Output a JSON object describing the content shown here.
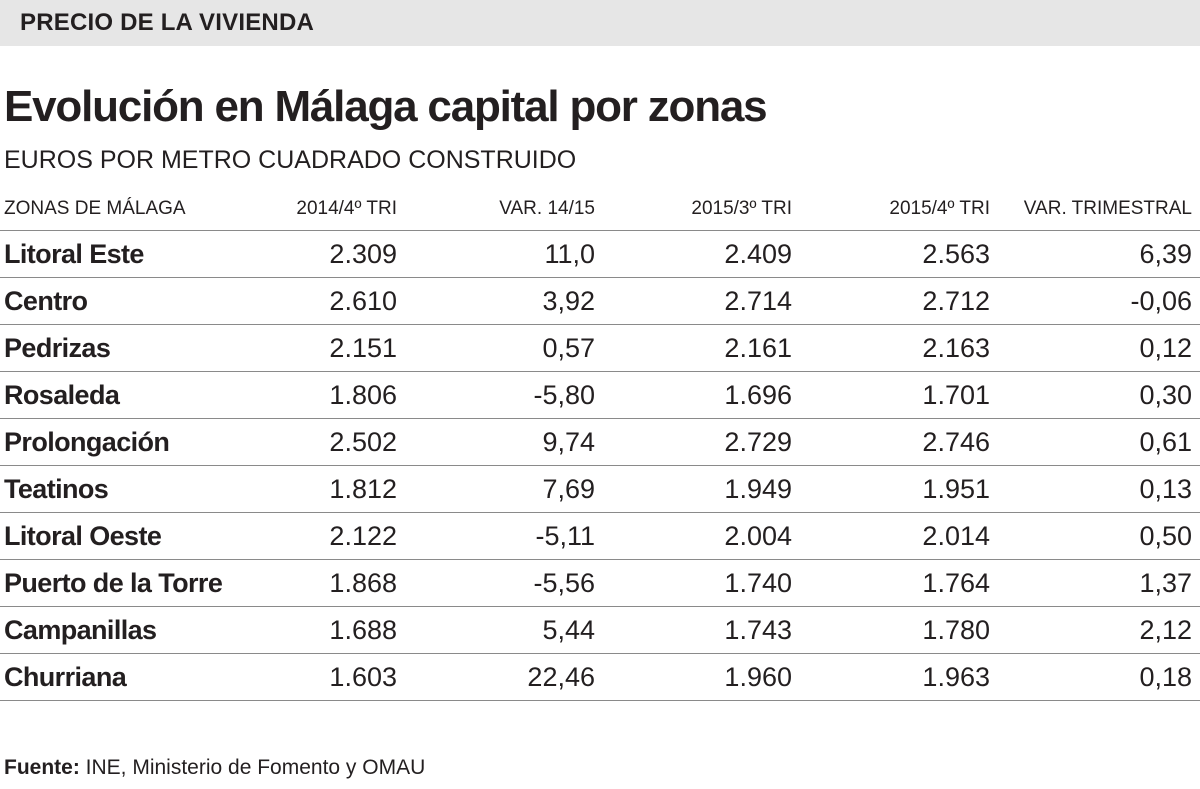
{
  "section": "PRECIO DE LA VIVIENDA",
  "title": "Evolución en Málaga capital por zonas",
  "subtitle": "EUROS POR METRO CUADRADO CONSTRUIDO",
  "source_label": "Fuente:",
  "source_text": "INE, Ministerio de Fomento y OMAU",
  "chart_data": {
    "type": "table",
    "title": "Evolución en Málaga capital por zonas",
    "subtitle": "EUROS POR METRO CUADRADO CONSTRUIDO",
    "columns": [
      "ZONAS DE MÁLAGA",
      "2014/4º TRI",
      "VAR. 14/15",
      "2015/3º TRI",
      "2015/4º TRI",
      "VAR. TRIMESTRAL"
    ],
    "rows": [
      [
        "Litoral Este",
        "2.309",
        "11,0",
        "2.409",
        "2.563",
        "6,39"
      ],
      [
        "Centro",
        "2.610",
        "3,92",
        "2.714",
        "2.712",
        "-0,06"
      ],
      [
        "Pedrizas",
        "2.151",
        "0,57",
        "2.161",
        "2.163",
        "0,12"
      ],
      [
        "Rosaleda",
        "1.806",
        "-5,80",
        "1.696",
        "1.701",
        "0,30"
      ],
      [
        "Prolongación",
        "2.502",
        "9,74",
        "2.729",
        "2.746",
        "0,61"
      ],
      [
        "Teatinos",
        "1.812",
        "7,69",
        "1.949",
        "1.951",
        "0,13"
      ],
      [
        "Litoral Oeste",
        "2.122",
        "-5,11",
        "2.004",
        "2.014",
        "0,50"
      ],
      [
        "Puerto de la Torre",
        "1.868",
        "-5,56",
        "1.740",
        "1.764",
        "1,37"
      ],
      [
        "Campanillas",
        "1.688",
        "5,44",
        "1.743",
        "1.780",
        "2,12"
      ],
      [
        "Churriana",
        "1.603",
        "22,46",
        "1.960",
        "1.963",
        "0,18"
      ]
    ]
  }
}
